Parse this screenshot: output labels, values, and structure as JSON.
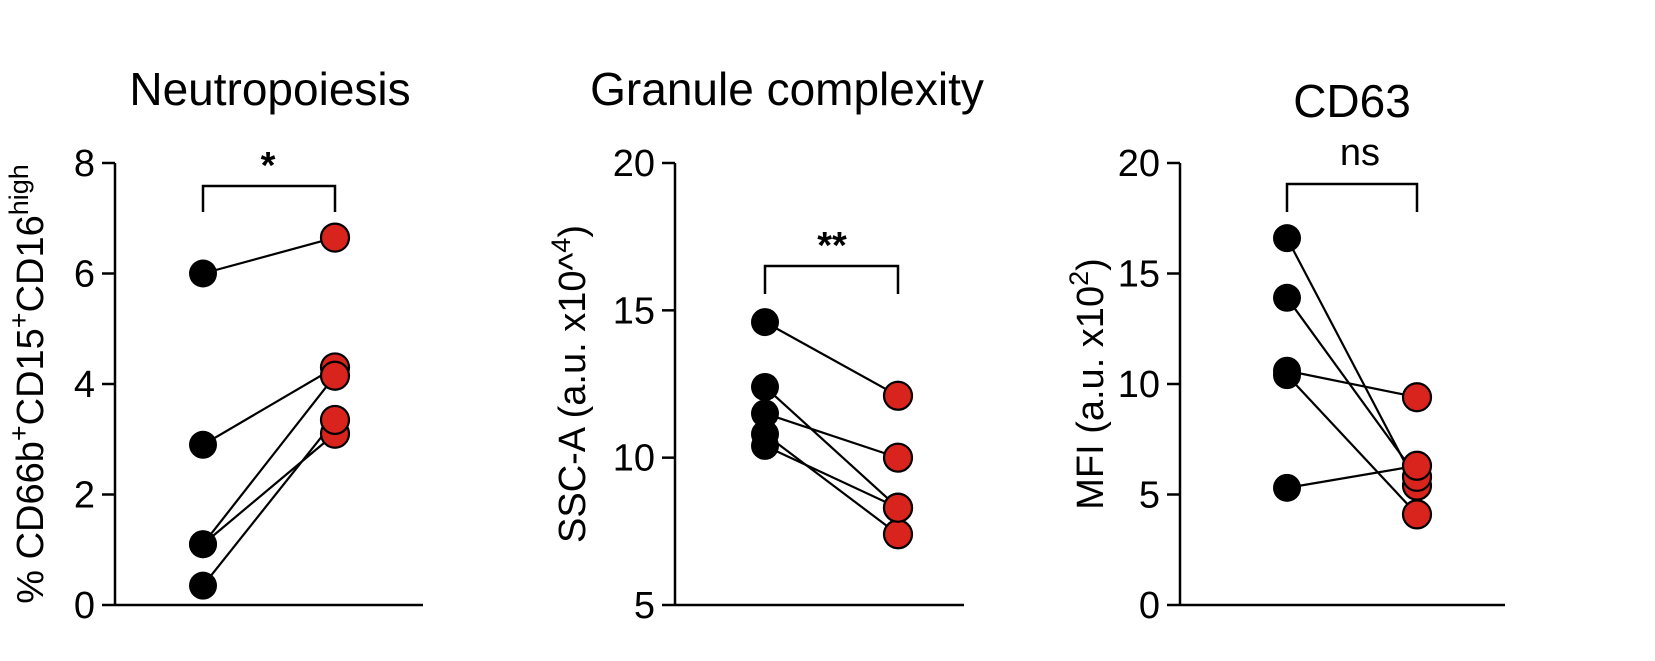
{
  "chart_data": [
    {
      "type": "scatter",
      "title": "Neutropoiesis",
      "ylabel_parts": [
        {
          "t": "% CD66b"
        },
        {
          "t": "+",
          "sup": true
        },
        {
          "t": "CD15"
        },
        {
          "t": "+",
          "sup": true
        },
        {
          "t": "CD16"
        },
        {
          "t": "high",
          "sup": true
        }
      ],
      "ylim": [
        0,
        8
      ],
      "yticks": [
        0,
        2,
        4,
        6,
        8
      ],
      "groups": [
        "",
        ""
      ],
      "series": [
        {
          "color": "#000000",
          "values": [
            6.0,
            2.9,
            1.1,
            1.1,
            0.35
          ]
        },
        {
          "color": "#d9231d",
          "values": [
            6.65,
            4.3,
            4.15,
            3.1,
            3.35
          ]
        }
      ],
      "significance": "*"
    },
    {
      "type": "scatter",
      "title": "Granule complexity",
      "ylabel_parts": [
        {
          "t": "SSC-A (a.u. x10^"
        },
        {
          "t": "4",
          "sup": true
        },
        {
          "t": ")"
        }
      ],
      "ylim": [
        5,
        20
      ],
      "yticks": [
        5,
        10,
        15,
        20
      ],
      "groups": [
        "",
        ""
      ],
      "series": [
        {
          "color": "#000000",
          "values": [
            14.6,
            12.4,
            11.5,
            10.8,
            10.4
          ]
        },
        {
          "color": "#d9231d",
          "values": [
            12.1,
            8.3,
            10.0,
            7.4,
            8.3
          ]
        }
      ],
      "significance": "**"
    },
    {
      "type": "scatter",
      "title": "CD63",
      "ylabel_parts": [
        {
          "t": "MFI (a.u. x10"
        },
        {
          "t": "2",
          "sup": true
        },
        {
          "t": ")"
        }
      ],
      "ylim": [
        0,
        20
      ],
      "yticks": [
        0,
        5,
        10,
        15,
        20
      ],
      "groups": [
        "",
        ""
      ],
      "series": [
        {
          "color": "#000000",
          "values": [
            16.6,
            13.9,
            10.6,
            10.4,
            5.3
          ]
        },
        {
          "color": "#d9231d",
          "values": [
            5.4,
            5.8,
            9.4,
            4.1,
            6.3
          ]
        }
      ],
      "significance": "ns"
    }
  ]
}
